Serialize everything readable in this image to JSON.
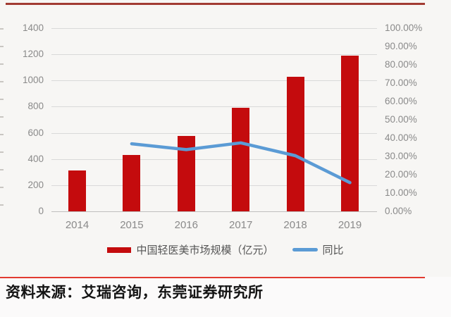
{
  "chart_data": {
    "type": "bar",
    "subtype": "combo-bar-line",
    "title": "",
    "categories": [
      "2014",
      "2015",
      "2016",
      "2017",
      "2018",
      "2019"
    ],
    "series": [
      {
        "name": "中国轻医美市场规模（亿元）",
        "type": "bar",
        "axis": "left",
        "values": [
          314,
          430,
          575,
          790,
          1030,
          1192
        ],
        "color": "#c40b0d"
      },
      {
        "name": "同比",
        "type": "line",
        "axis": "right",
        "values": [
          null,
          36.9,
          33.7,
          37.4,
          30.4,
          15.7
        ],
        "color": "#5b9bd5"
      }
    ],
    "left_axis": {
      "min": 0,
      "max": 1400,
      "step": 200,
      "tick_labels": [
        "0",
        "200",
        "400",
        "600",
        "800",
        "1000",
        "1200",
        "1400"
      ]
    },
    "right_axis": {
      "min": 0,
      "max": 100,
      "step": 10,
      "tick_labels": [
        "0.00%",
        "10.00%",
        "20.00%",
        "30.00%",
        "40.00%",
        "50.00%",
        "60.00%",
        "70.00%",
        "80.00%",
        "90.00%",
        "100.00%"
      ]
    },
    "grid": true,
    "legend_position": "bottom"
  },
  "legend": {
    "bar_label": "中国轻医美市场规模（亿元）",
    "line_label": "同比"
  },
  "source_note": "资料来源：艾瑞咨询，东莞证券研究所",
  "colors": {
    "bar": "#c40b0d",
    "line": "#5b9bd5",
    "top_rule": "#a23b32",
    "bottom_rule": "#e23b31",
    "gridline": "#d9d9d9",
    "axis_line": "#bfbfbf",
    "axis_text": "#8a8a8a",
    "background": "#f7f6f4"
  }
}
